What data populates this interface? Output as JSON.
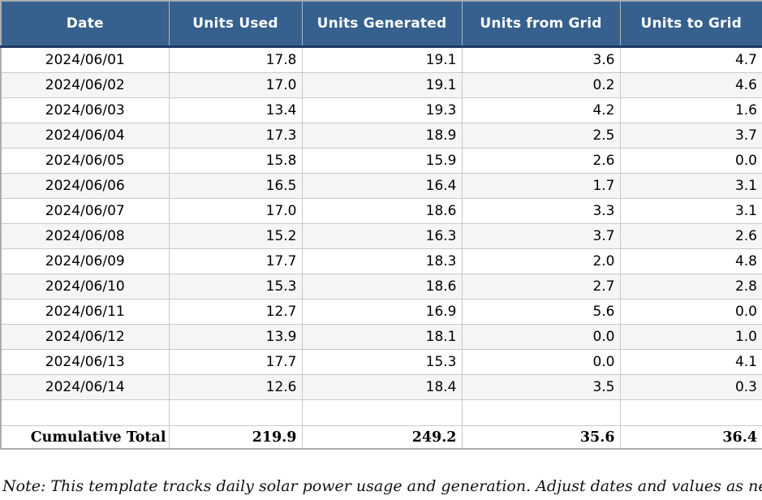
{
  "table": {
    "columns": [
      "Date",
      "Units Used",
      "Units Generated",
      "Units from Grid",
      "Units to Grid"
    ],
    "rows": [
      [
        "2024/06/01",
        "17.8",
        "19.1",
        "3.6",
        "4.7"
      ],
      [
        "2024/06/02",
        "17.0",
        "19.1",
        "0.2",
        "4.6"
      ],
      [
        "2024/06/03",
        "13.4",
        "19.3",
        "4.2",
        "1.6"
      ],
      [
        "2024/06/04",
        "17.3",
        "18.9",
        "2.5",
        "3.7"
      ],
      [
        "2024/06/05",
        "15.8",
        "15.9",
        "2.6",
        "0.0"
      ],
      [
        "2024/06/06",
        "16.5",
        "16.4",
        "1.7",
        "3.1"
      ],
      [
        "2024/06/07",
        "17.0",
        "18.6",
        "3.3",
        "3.1"
      ],
      [
        "2024/06/08",
        "15.2",
        "16.3",
        "3.7",
        "2.6"
      ],
      [
        "2024/06/09",
        "17.7",
        "18.3",
        "2.0",
        "4.8"
      ],
      [
        "2024/06/10",
        "15.3",
        "18.6",
        "2.7",
        "2.8"
      ],
      [
        "2024/06/11",
        "12.7",
        "16.9",
        "5.6",
        "0.0"
      ],
      [
        "2024/06/12",
        "13.9",
        "18.1",
        "0.0",
        "1.0"
      ],
      [
        "2024/06/13",
        "17.7",
        "15.3",
        "0.0",
        "4.1"
      ],
      [
        "2024/06/14",
        "12.6",
        "18.4",
        "3.5",
        "0.3"
      ]
    ],
    "total_label": "Cumulative Total",
    "totals": [
      "219.9",
      "249.2",
      "35.6",
      "36.4"
    ]
  },
  "note": "Note: This template tracks daily solar power usage and generation. Adjust dates and values as needed to fit actu",
  "colors": {
    "header_bg": "#36618e",
    "header_divider": "#1f3864",
    "grid_line": "#c9c9c9",
    "alt_row_bg": "#f5f5f6"
  }
}
